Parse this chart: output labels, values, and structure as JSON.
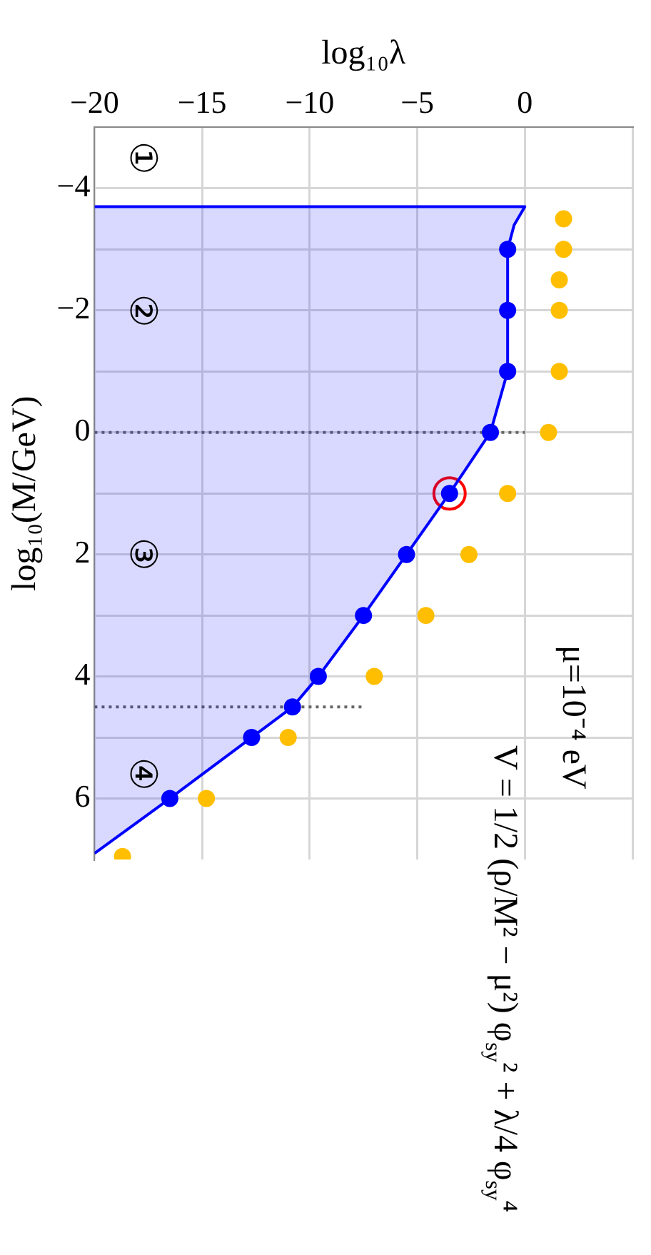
{
  "chart_data": {
    "type": "scatter",
    "xlabel": "log₁₀λ",
    "ylabel": "log₁₀(M/GeV)",
    "xlim": [
      -20,
      5
    ],
    "xticks": [
      {
        "value": -20,
        "label": "−20"
      },
      {
        "value": -15,
        "label": "−15"
      },
      {
        "value": -10,
        "label": "−10"
      },
      {
        "value": -5,
        "label": "−5"
      },
      {
        "value": 0,
        "label": "0"
      },
      {
        "value": 5,
        "label": null
      }
    ],
    "ylim": [
      7,
      -5
    ],
    "yticks": [
      {
        "value": -4,
        "label": "−4"
      },
      {
        "value": -3,
        "label": null
      },
      {
        "value": -2,
        "label": "−2"
      },
      {
        "value": -1,
        "label": null
      },
      {
        "value": 0,
        "label": "0"
      },
      {
        "value": 1,
        "label": null
      },
      {
        "value": 2,
        "label": "2"
      },
      {
        "value": 3,
        "label": null
      },
      {
        "value": 4,
        "label": "4"
      },
      {
        "value": 5,
        "label": null
      },
      {
        "value": 6,
        "label": "6"
      }
    ],
    "grid": true,
    "legend": false,
    "series": [
      {
        "type": "area",
        "color": "#0000ff",
        "marker": "none",
        "x": [
          -20,
          0,
          -0.5,
          -0.8,
          -0.8,
          -1.6,
          -3.5,
          -5.5,
          -7.5,
          -9.6,
          -10.8,
          -12.7,
          -16.5,
          -20
        ],
        "values": [
          -3.7,
          -3.7,
          -3.4,
          -3,
          -1,
          0,
          1,
          2,
          3,
          4,
          4.5,
          5,
          6,
          6.9
        ]
      },
      {
        "color": "#0000ff",
        "marker": "circle",
        "x": [
          -0.8,
          -0.8,
          -0.8,
          -1.6,
          -3.5,
          -5.5,
          -7.5,
          -9.6,
          -10.8,
          -12.7,
          -16.5
        ],
        "values": [
          -3,
          -2,
          -1,
          0,
          1,
          2,
          3,
          4,
          4.5,
          5,
          6
        ]
      },
      {
        "color": "#ffbf00",
        "marker": "circle",
        "x": [
          1.8,
          1.8,
          1.6,
          1.6,
          1.6,
          1.1,
          -0.8,
          -2.6,
          -4.6,
          -7,
          -11,
          -14.8,
          -18.7
        ],
        "values": [
          -3.5,
          -3,
          -2.5,
          -2,
          -1,
          0,
          1,
          2,
          3,
          4,
          5,
          6,
          6.95
        ]
      },
      {
        "type": "scatter",
        "color": "#ff0000",
        "x": [
          -3.5
        ],
        "values": [
          1
        ]
      },
      {
        "type": "line",
        "color": "#666666",
        "marker": "none",
        "line_style": "dotted",
        "x": [
          -20,
          0
        ],
        "values": [
          0,
          0
        ]
      },
      {
        "type": "line",
        "color": "#666666",
        "marker": "none",
        "line_style": "dotted",
        "x": [
          -20,
          -7.5
        ],
        "values": [
          4.5,
          4.5
        ]
      }
    ],
    "annotations": [
      "①",
      "②",
      "③",
      "④",
      "μ=10⁻⁴ eV",
      "V = 1/2 (ρ/M² − μ²) φ$_{sy}$² + λ/4 φ$_{sy}$⁴"
    ]
  }
}
